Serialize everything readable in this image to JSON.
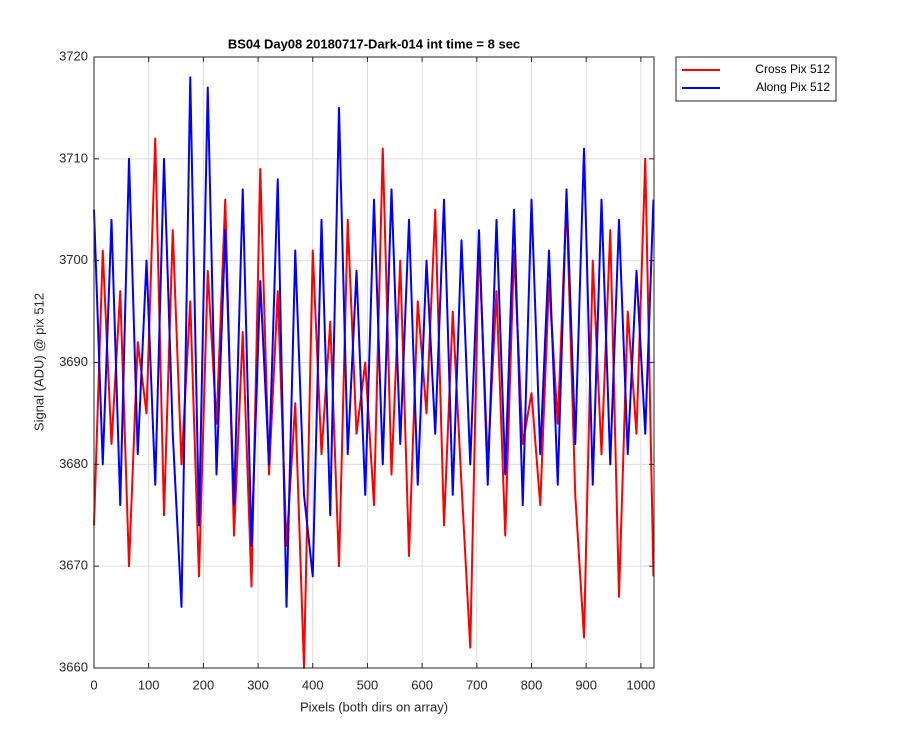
{
  "chart_data": {
    "type": "line",
    "title": "BS04 Day08 20180717-Dark-014 int time = 8 sec",
    "xlabel": "Pixels (both dirs on array)",
    "ylabel": "Signal (ADU) @ pix 512",
    "x": [
      0,
      16,
      32,
      48,
      64,
      80,
      96,
      112,
      128,
      144,
      160,
      176,
      192,
      208,
      224,
      240,
      256,
      272,
      288,
      304,
      320,
      336,
      352,
      368,
      384,
      400,
      416,
      432,
      448,
      464,
      480,
      496,
      512,
      528,
      544,
      560,
      576,
      592,
      608,
      624,
      640,
      656,
      672,
      688,
      704,
      720,
      736,
      752,
      768,
      784,
      800,
      816,
      832,
      848,
      864,
      880,
      896,
      912,
      928,
      944,
      960,
      976,
      992,
      1008,
      1023
    ],
    "series": [
      {
        "name": "Cross Pix 512",
        "color": "#ff0000",
        "values": [
          3674,
          3701,
          3682,
          3697,
          3670,
          3692,
          3685,
          3712,
          3675,
          3703,
          3680,
          3696,
          3669,
          3699,
          3684,
          3706,
          3673,
          3693,
          3668,
          3709,
          3679,
          3697,
          3672,
          3686,
          3660,
          3701,
          3681,
          3694,
          3670,
          3704,
          3683,
          3690,
          3676,
          3711,
          3679,
          3700,
          3671,
          3696,
          3685,
          3705,
          3674,
          3695,
          3678,
          3662,
          3702,
          3680,
          3697,
          3673,
          3701,
          3682,
          3687,
          3676,
          3698,
          3684,
          3706,
          3677,
          3663,
          3700,
          3681,
          3703,
          3667,
          3695,
          3683,
          3710,
          3669
        ]
      },
      {
        "name": "Along Pix 512",
        "color": "#0000ff",
        "values": [
          3705,
          3680,
          3704,
          3676,
          3710,
          3681,
          3700,
          3678,
          3710,
          3683,
          3666,
          3718,
          3674,
          3717,
          3679,
          3703,
          3676,
          3707,
          3672,
          3698,
          3680,
          3708,
          3666,
          3701,
          3677,
          3669,
          3704,
          3675,
          3715,
          3681,
          3699,
          3677,
          3706,
          3680,
          3707,
          3682,
          3704,
          3678,
          3700,
          3683,
          3706,
          3677,
          3702,
          3680,
          3703,
          3678,
          3704,
          3679,
          3705,
          3676,
          3706,
          3681,
          3701,
          3678,
          3707,
          3682,
          3711,
          3678,
          3706,
          3680,
          3704,
          3681,
          3699,
          3683,
          3706
        ]
      }
    ],
    "xlim": [
      0,
      1024
    ],
    "xticks": [
      0,
      100,
      200,
      300,
      400,
      500,
      600,
      700,
      800,
      900,
      1000
    ],
    "ylim": [
      3660,
      3720
    ],
    "yticks": [
      3660,
      3670,
      3680,
      3690,
      3700,
      3710,
      3720
    ],
    "grid": true,
    "legend": "northeastoutside"
  }
}
